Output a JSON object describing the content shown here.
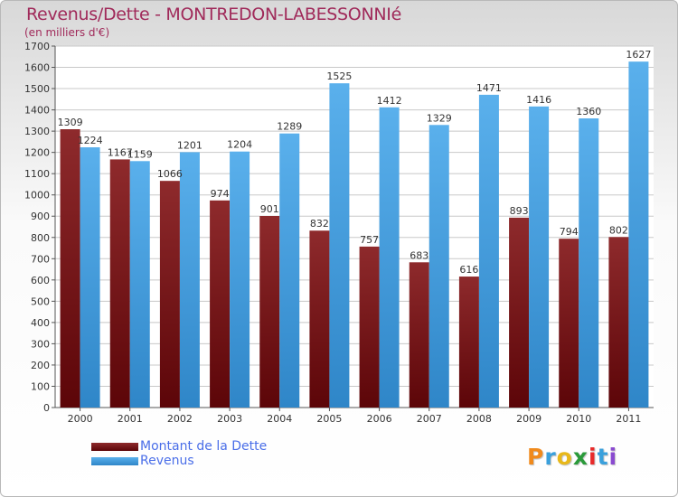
{
  "title": "Revenus/Dette - MONTREDON-LABESSONNIé",
  "subtitle": "(en milliers d'€)",
  "logo": {
    "text": "Proxiti",
    "colors": [
      "#f08a1c",
      "#3aa0dc",
      "#e8b81a",
      "#2a9a3a",
      "#e82a2a",
      "#3aa0dc",
      "#8a4ad0"
    ]
  },
  "colors": {
    "dette": "#7a1518",
    "revenus": "#3f9fe0"
  },
  "chart_data": {
    "type": "bar",
    "categories": [
      "2000",
      "2001",
      "2002",
      "2003",
      "2004",
      "2005",
      "2006",
      "2007",
      "2008",
      "2009",
      "2010",
      "2011"
    ],
    "series": [
      {
        "name": "Montant de la Dette",
        "values": [
          1309,
          1167,
          1066,
          974,
          901,
          832,
          757,
          683,
          616,
          893,
          794,
          802
        ]
      },
      {
        "name": "Revenus",
        "values": [
          1224,
          1159,
          1201,
          1204,
          1289,
          1525,
          1412,
          1329,
          1471,
          1416,
          1360,
          1627
        ]
      }
    ],
    "data_labels": [
      [
        "1309",
        "1167",
        "1066",
        "974",
        "901",
        "832",
        "757",
        "683",
        "616",
        "893",
        "794",
        "802"
      ],
      [
        "1224",
        "1159",
        "1201",
        "1204",
        "1289",
        "1525",
        "1412",
        "1329",
        "1471",
        "1416",
        "1360",
        "1627"
      ]
    ],
    "ylim": [
      0,
      1700
    ],
    "yticks": [
      0,
      100,
      200,
      300,
      400,
      500,
      600,
      700,
      800,
      900,
      1000,
      1100,
      1200,
      1300,
      1400,
      1500,
      1600,
      1700
    ],
    "grid": true,
    "legend": "bottom-left"
  }
}
